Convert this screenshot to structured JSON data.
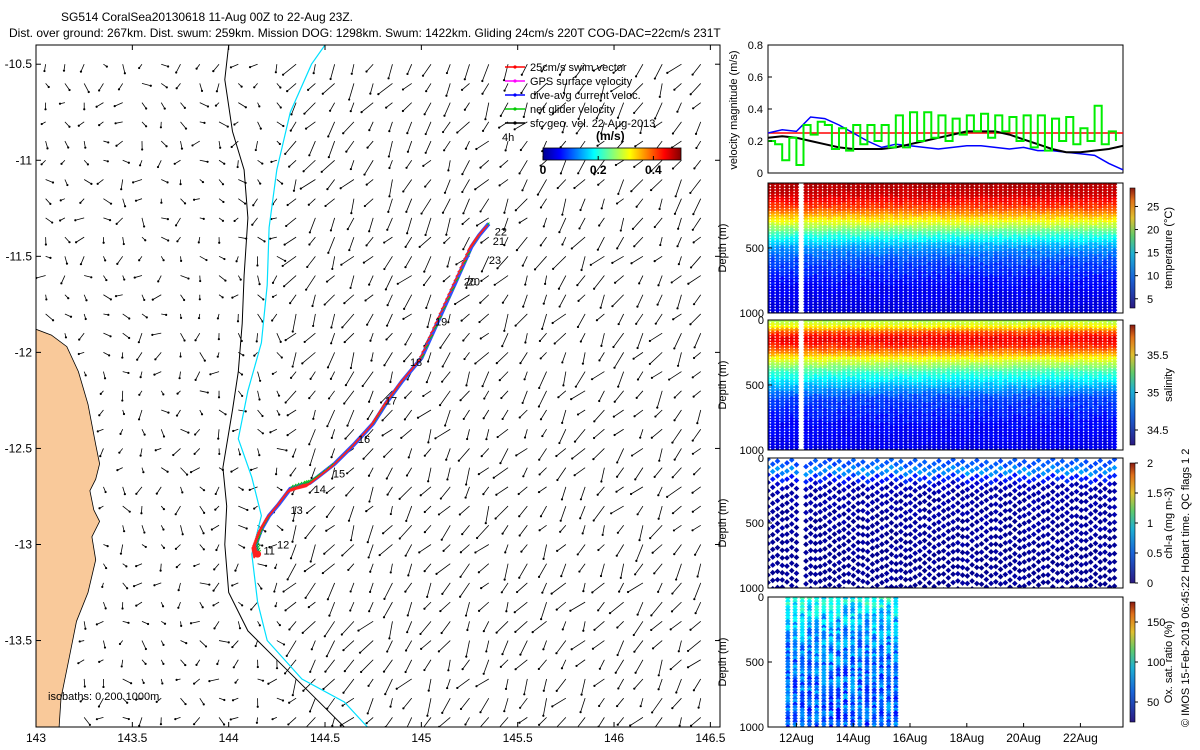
{
  "header": {
    "line1": "SG514 CoralSea20130618 11-Aug 00Z to 22-Aug 23Z.",
    "line2": "Dist. over ground: 267km. Dist. swum: 259km. Mission DOG: 1298km. Swum: 1422km. Gliding 24cm/s 220T COG-DAC=22cm/s 231T"
  },
  "footer": {
    "credit": "© IMOS 15-Feb-2019 06:45:22 Hobart time. QC flags 1  2"
  },
  "chart_data": [
    {
      "type": "map",
      "name": "track-map",
      "xlim": [
        143.0,
        146.55
      ],
      "ylim": [
        -13.95,
        -10.4
      ],
      "xticks": [
        143,
        143.5,
        144,
        144.5,
        145,
        145.5,
        146,
        146.5
      ],
      "xticklabels": [
        "143",
        "143.5",
        "144",
        "144.5",
        "145",
        "145.5",
        "146",
        "146.5"
      ],
      "yticks": [
        -10.5,
        -11,
        -11.5,
        -12,
        -12.5,
        -13,
        -13.5
      ],
      "yticklabels": [
        "-10.5",
        "-11",
        "-11.5",
        "-12",
        "-12.5",
        "-13",
        "-13.5"
      ],
      "legend": [
        {
          "label": "25cm/s swim vector",
          "color": "#ff0000"
        },
        {
          "label": "GPS surface velocity",
          "color": "#ff00ff"
        },
        {
          "label": "dive-avg current veloc.",
          "color": "#0000ff"
        },
        {
          "label": "net glider velocity",
          "color": "#00cc00"
        },
        {
          "label": "sfc geo. vel. 22-Aug-2013",
          "color": "#000000"
        }
      ],
      "legend_note": "4h",
      "colorbar": {
        "title": "(m/s)",
        "ticks": [
          "0",
          "0.2",
          "0.4"
        ],
        "range": [
          0,
          0.5
        ],
        "colormap": "jet"
      },
      "isobaths_label": "isobaths: 0   200 1000m",
      "track": [
        [
          144.15,
          -13.05
        ],
        [
          144.14,
          -13.0
        ],
        [
          144.17,
          -12.92
        ],
        [
          144.21,
          -12.85
        ],
        [
          144.26,
          -12.79
        ],
        [
          144.32,
          -12.71
        ],
        [
          144.38,
          -12.69
        ],
        [
          144.42,
          -12.68
        ],
        [
          144.46,
          -12.65
        ],
        [
          144.55,
          -12.58
        ],
        [
          144.65,
          -12.48
        ],
        [
          144.75,
          -12.37
        ],
        [
          144.82,
          -12.26
        ],
        [
          144.9,
          -12.15
        ],
        [
          145.0,
          -12.03
        ],
        [
          145.09,
          -11.83
        ],
        [
          145.18,
          -11.63
        ],
        [
          145.26,
          -11.45
        ],
        [
          145.3,
          -11.39
        ],
        [
          145.35,
          -11.33
        ]
      ],
      "day_labels": [
        {
          "text": "11",
          "lon": 144.16,
          "lat": -13.03
        },
        {
          "text": "12",
          "lon": 144.23,
          "lat": -13.0
        },
        {
          "text": "13",
          "lon": 144.3,
          "lat": -12.82
        },
        {
          "text": "14",
          "lon": 144.42,
          "lat": -12.71
        },
        {
          "text": "15",
          "lon": 144.52,
          "lat": -12.63
        },
        {
          "text": "16",
          "lon": 144.65,
          "lat": -12.45
        },
        {
          "text": "17",
          "lon": 144.79,
          "lat": -12.25
        },
        {
          "text": "18",
          "lon": 144.92,
          "lat": -12.05
        },
        {
          "text": "19",
          "lon": 145.05,
          "lat": -11.84
        },
        {
          "text": "20",
          "lon": 145.2,
          "lat": -11.63
        },
        {
          "text": "20",
          "lon": 145.22,
          "lat": -11.63
        },
        {
          "text": "21",
          "lon": 145.35,
          "lat": -11.42
        },
        {
          "text": "22",
          "lon": 145.36,
          "lat": -11.37
        },
        {
          "text": "23",
          "lon": 145.33,
          "lat": -11.52
        }
      ],
      "coast": [
        [
          143.0,
          -11.88
        ],
        [
          143.08,
          -11.91
        ],
        [
          143.16,
          -11.97
        ],
        [
          143.22,
          -12.1
        ],
        [
          143.27,
          -12.27
        ],
        [
          143.31,
          -12.48
        ],
        [
          143.33,
          -12.58
        ],
        [
          143.31,
          -12.66
        ],
        [
          143.28,
          -12.72
        ],
        [
          143.3,
          -12.82
        ],
        [
          143.33,
          -12.88
        ],
        [
          143.29,
          -12.96
        ],
        [
          143.31,
          -13.08
        ],
        [
          143.27,
          -13.25
        ],
        [
          143.21,
          -13.4
        ],
        [
          143.17,
          -13.6
        ],
        [
          143.13,
          -13.8
        ],
        [
          143.12,
          -13.95
        ]
      ],
      "isobath_200": [
        [
          144.0,
          -10.4
        ],
        [
          143.98,
          -10.58
        ],
        [
          144.02,
          -10.85
        ],
        [
          144.08,
          -11.05
        ],
        [
          144.1,
          -11.3
        ],
        [
          144.08,
          -11.6
        ],
        [
          144.07,
          -11.85
        ],
        [
          144.05,
          -12.1
        ],
        [
          144.02,
          -12.3
        ],
        [
          143.97,
          -12.6
        ],
        [
          143.99,
          -12.8
        ],
        [
          143.98,
          -13.0
        ],
        [
          144.0,
          -13.25
        ],
        [
          144.1,
          -13.45
        ],
        [
          144.25,
          -13.6
        ],
        [
          144.45,
          -13.8
        ],
        [
          144.6,
          -13.95
        ]
      ],
      "isobath_1000": [
        [
          144.5,
          -10.4
        ],
        [
          144.43,
          -10.5
        ],
        [
          144.32,
          -10.75
        ],
        [
          144.25,
          -11.05
        ],
        [
          144.21,
          -11.35
        ],
        [
          144.2,
          -11.65
        ],
        [
          144.17,
          -11.95
        ],
        [
          144.1,
          -12.2
        ],
        [
          144.05,
          -12.45
        ],
        [
          144.12,
          -12.65
        ],
        [
          144.17,
          -12.85
        ],
        [
          144.12,
          -13.05
        ],
        [
          144.15,
          -13.3
        ],
        [
          144.2,
          -13.5
        ],
        [
          144.38,
          -13.7
        ],
        [
          144.6,
          -13.82
        ],
        [
          144.72,
          -13.95
        ]
      ],
      "vector_field_note": "sfc geostrophic velocity arrows, typical 0.1-0.25 m/s, flowing south-west"
    },
    {
      "type": "line",
      "name": "velocity-panel",
      "ylabel": "velocity magnitude (m/s)",
      "xlim": [
        11.0,
        23.5
      ],
      "ylim": [
        0,
        0.8
      ],
      "yticks": [
        0,
        0.2,
        0.4,
        0.6,
        0.8
      ],
      "yticklabels": [
        "0",
        "0.2",
        "0.4",
        "0.6",
        "0.8"
      ],
      "series": [
        {
          "name": "swim speed 25cm/s",
          "color": "#ff0000",
          "x": [
            11.0,
            23.5
          ],
          "y": [
            0.25,
            0.25
          ]
        },
        {
          "name": "dive-avg current",
          "color": "#0000ff",
          "x": [
            11.0,
            11.5,
            12.0,
            12.5,
            13.0,
            13.5,
            14.0,
            14.5,
            15.0,
            15.5,
            16.0,
            16.5,
            17.0,
            17.5,
            18.0,
            18.5,
            19.0,
            19.5,
            20.0,
            20.5,
            21.0,
            21.5,
            22.0,
            22.5,
            23.0,
            23.5
          ],
          "y": [
            0.25,
            0.27,
            0.26,
            0.35,
            0.34,
            0.3,
            0.25,
            0.2,
            0.16,
            0.18,
            0.17,
            0.16,
            0.15,
            0.16,
            0.17,
            0.17,
            0.16,
            0.15,
            0.16,
            0.14,
            0.14,
            0.13,
            0.12,
            0.11,
            0.06,
            0.02
          ]
        },
        {
          "name": "sfc geo. vel.",
          "color": "#000000",
          "x": [
            11.0,
            11.5,
            12.0,
            12.5,
            13.0,
            13.5,
            14.0,
            14.5,
            15.0,
            15.5,
            16.0,
            16.5,
            17.0,
            17.5,
            18.0,
            18.5,
            19.0,
            19.5,
            20.0,
            20.5,
            21.0,
            21.5,
            22.0,
            22.5,
            23.0,
            23.5
          ],
          "y": [
            0.22,
            0.23,
            0.22,
            0.2,
            0.18,
            0.16,
            0.15,
            0.15,
            0.15,
            0.16,
            0.18,
            0.2,
            0.22,
            0.24,
            0.26,
            0.26,
            0.26,
            0.24,
            0.21,
            0.18,
            0.15,
            0.13,
            0.13,
            0.14,
            0.15,
            0.17
          ]
        },
        {
          "name": "net glider velocity",
          "color": "#00ee00",
          "x": [
            11.0,
            11.25,
            11.5,
            11.75,
            12.0,
            12.25,
            12.5,
            12.75,
            13.0,
            13.25,
            13.5,
            13.75,
            14.0,
            14.25,
            14.5,
            14.75,
            15.0,
            15.25,
            15.5,
            15.75,
            16.0,
            16.25,
            16.5,
            16.75,
            17.0,
            17.25,
            17.5,
            17.75,
            18.0,
            18.25,
            18.5,
            18.75,
            19.0,
            19.25,
            19.5,
            19.75,
            20.0,
            20.25,
            20.5,
            20.75,
            21.0,
            21.25,
            21.5,
            21.75,
            22.0,
            22.25,
            22.5,
            22.75,
            23.0,
            23.25
          ],
          "y": [
            0.2,
            0.18,
            0.08,
            0.22,
            0.05,
            0.3,
            0.24,
            0.32,
            0.3,
            0.15,
            0.28,
            0.14,
            0.3,
            0.18,
            0.3,
            0.2,
            0.3,
            0.16,
            0.36,
            0.16,
            0.38,
            0.2,
            0.38,
            0.22,
            0.36,
            0.2,
            0.34,
            0.24,
            0.36,
            0.26,
            0.37,
            0.22,
            0.36,
            0.26,
            0.35,
            0.2,
            0.36,
            0.16,
            0.36,
            0.14,
            0.34,
            0.2,
            0.35,
            0.18,
            0.28,
            0.2,
            0.42,
            0.18,
            0.26,
            0.2
          ]
        }
      ]
    },
    {
      "type": "heatmap",
      "name": "temperature-section",
      "ylabel": "Depth (m)",
      "yticks": [
        0,
        500,
        1000
      ],
      "yticklabels": [
        "",
        "500",
        "1000"
      ],
      "colorbar": {
        "label": "temperature (°C)",
        "range": [
          3,
          29
        ],
        "ticks": [
          5,
          10,
          15,
          20,
          25
        ],
        "ticklabels": [
          "5",
          "10",
          "15",
          "20",
          "25"
        ]
      },
      "profile": {
        "depth": [
          0,
          100,
          200,
          300,
          400,
          500,
          600,
          800,
          1000
        ],
        "value": [
          28,
          27,
          24,
          19,
          14,
          10,
          8,
          6,
          5
        ]
      }
    },
    {
      "type": "heatmap",
      "name": "salinity-section",
      "ylabel": "Depth (m)",
      "yticks": [
        0,
        500,
        1000
      ],
      "yticklabels": [
        "0",
        "500",
        "1000"
      ],
      "colorbar": {
        "label": "salinity",
        "range": [
          34.3,
          35.9
        ],
        "ticks": [
          34.5,
          35,
          35.5
        ],
        "ticklabels": [
          "34.5",
          "35",
          "35.5"
        ]
      },
      "profile": {
        "depth": [
          0,
          50,
          100,
          150,
          200,
          250,
          300,
          400,
          500,
          600,
          800,
          1000
        ],
        "value": [
          35.15,
          35.3,
          35.6,
          35.75,
          35.65,
          35.5,
          35.3,
          35.0,
          34.8,
          34.6,
          34.5,
          34.45
        ]
      }
    },
    {
      "type": "heatmap",
      "name": "chlorophyll-section",
      "ylabel": "Depth (m)",
      "yticks": [
        0,
        500,
        1000
      ],
      "yticklabels": [
        "0",
        "500",
        "1000"
      ],
      "colorbar": {
        "label": "chl-a (mg m-3)",
        "range": [
          0,
          2
        ],
        "ticks": [
          0,
          0.5,
          1,
          1.5,
          2
        ],
        "ticklabels": [
          "0",
          "0.5",
          "1",
          "1.5",
          "2"
        ]
      },
      "profile": {
        "depth": [
          0,
          50,
          100,
          200,
          1000
        ],
        "value": [
          0.35,
          0.6,
          0.4,
          0.05,
          0.0
        ]
      }
    },
    {
      "type": "heatmap",
      "name": "oxygen-section",
      "ylabel": "Depth (m)",
      "yticks": [
        0,
        500,
        1000
      ],
      "yticklabels": [
        "0",
        "500",
        "1000"
      ],
      "xlim": [
        11.0,
        23.5
      ],
      "xticks": [
        12,
        14,
        16,
        18,
        20,
        22
      ],
      "xticklabels": [
        "12Aug",
        "14Aug",
        "16Aug",
        "18Aug",
        "20Aug",
        "22Aug"
      ],
      "colorbar": {
        "label": "Ox. sat. ratio (%)",
        "range": [
          25,
          175
        ],
        "ticks": [
          50,
          100,
          150
        ],
        "ticklabels": [
          "50",
          "100",
          "150"
        ]
      },
      "profile": {
        "depth": [
          0,
          200,
          500,
          1000
        ],
        "value": [
          85,
          70,
          60,
          55
        ]
      },
      "data_span_days": [
        11.7,
        15.5
      ]
    }
  ]
}
